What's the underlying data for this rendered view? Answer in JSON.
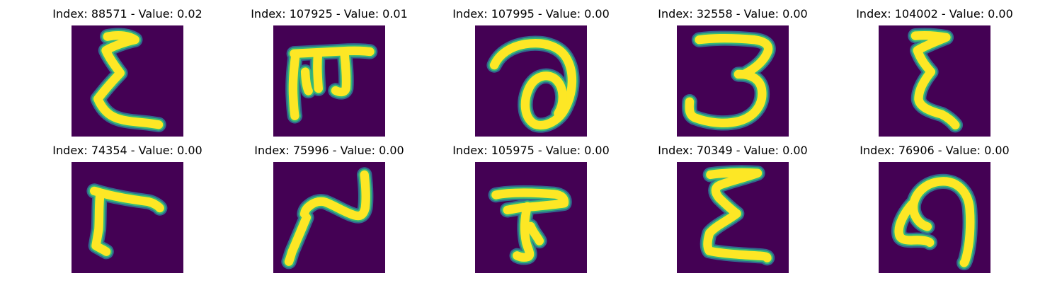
{
  "colors": {
    "background": "#440154",
    "edge_dark": "#31688e",
    "edge_mid": "#35b779",
    "stroke": "#fde725"
  },
  "grid": {
    "rows": 2,
    "columns": 5
  },
  "panels": [
    {
      "index": "88571",
      "value": "0.02",
      "title": "Index: 88571 - Value: 0.02"
    },
    {
      "index": "107925",
      "value": "0.01",
      "title": "Index: 107925 - Value: 0.01"
    },
    {
      "index": "107995",
      "value": "0.00",
      "title": "Index: 107995 - Value: 0.00"
    },
    {
      "index": "32558",
      "value": "0.00",
      "title": "Index: 32558 - Value: 0.00"
    },
    {
      "index": "104002",
      "value": "0.00",
      "title": "Index: 104002 - Value: 0.00"
    },
    {
      "index": "74354",
      "value": "0.00",
      "title": "Index: 74354 - Value: 0.00"
    },
    {
      "index": "75996",
      "value": "0.00",
      "title": "Index: 75996 - Value: 0.00"
    },
    {
      "index": "105975",
      "value": "0.00",
      "title": "Index: 105975 - Value: 0.00"
    },
    {
      "index": "70349",
      "value": "0.00",
      "title": "Index: 70349 - Value: 0.00"
    },
    {
      "index": "76906",
      "value": "0.00",
      "title": "Index: 76906 - Value: 0.00"
    }
  ]
}
